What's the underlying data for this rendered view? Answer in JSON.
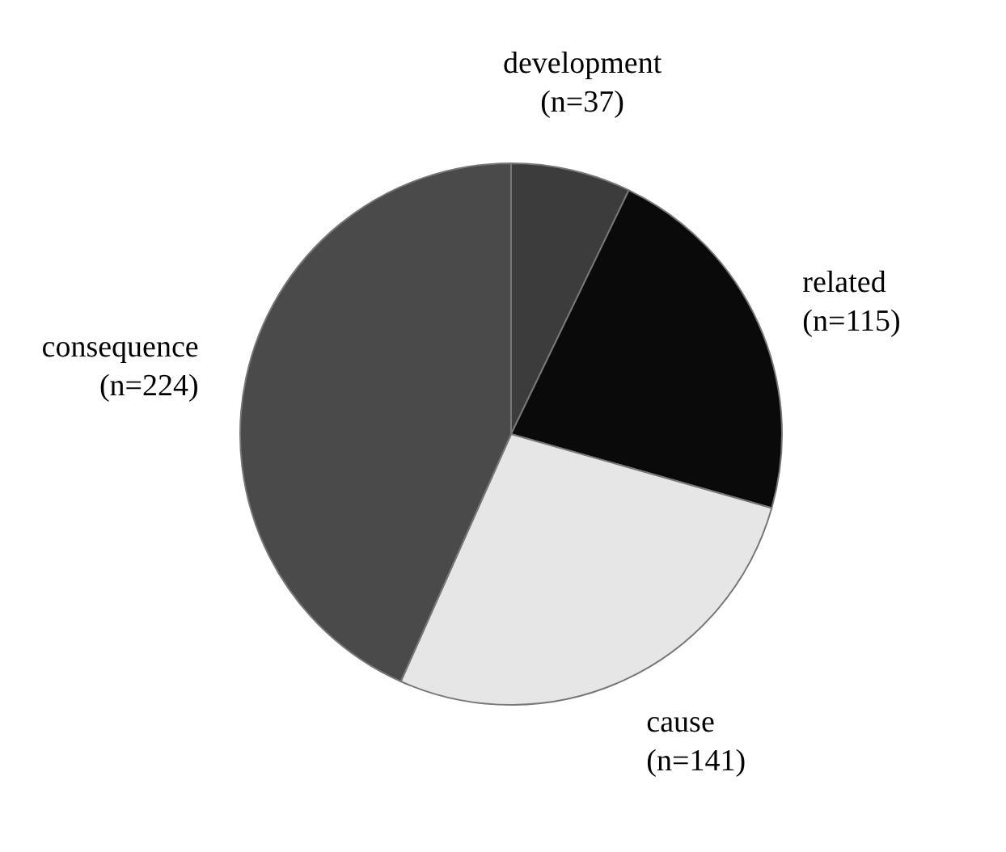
{
  "chart_data": {
    "type": "pie",
    "categories": [
      "development",
      "related",
      "cause",
      "consequence"
    ],
    "values": [
      37,
      115,
      141,
      224
    ],
    "colors": [
      "#3c3c3c",
      "#0a0a0a",
      "#e6e6e6",
      "#4a4a4a"
    ],
    "value_labels": [
      "(n=37)",
      "(n=115)",
      "(n=141)",
      "(n=224)"
    ],
    "legend": false
  }
}
